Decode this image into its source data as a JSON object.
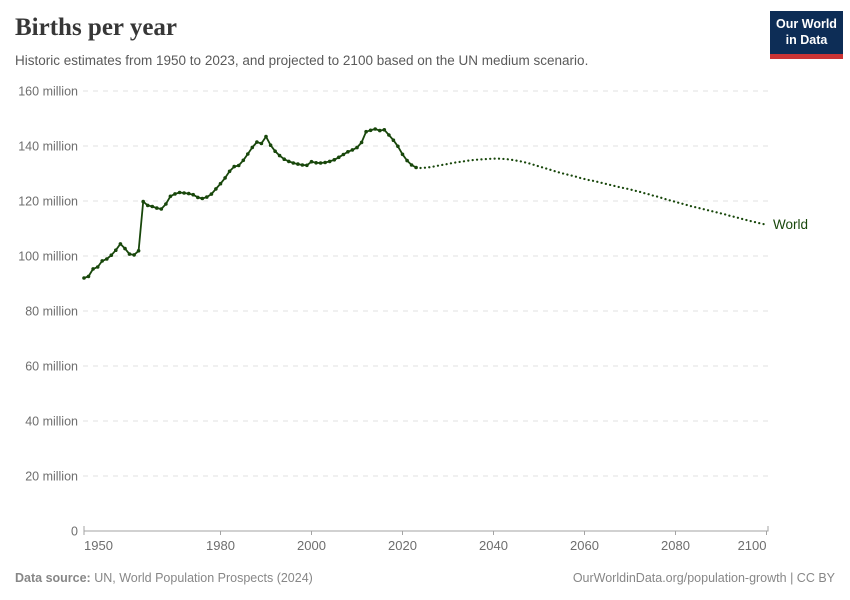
{
  "header": {
    "title": "Births per year",
    "subtitle": "Historic estimates from 1950 to 2023, and projected to 2100 based on the UN medium scenario.",
    "logo": {
      "line1": "Our World",
      "line2": "in Data",
      "bg": "#0d2d56",
      "accent": "#cb3434"
    }
  },
  "chart_data": {
    "type": "line",
    "title": "Births per year",
    "series_label": "World",
    "color": "#18470b",
    "grid_color": "#e2e2e2",
    "axis_color": "#a3a3a3",
    "tick_color": "#6e6e6e",
    "ylim": [
      0,
      160
    ],
    "xlim": [
      1950,
      2100
    ],
    "grid": "dashed-horizontal",
    "legend_position": "end-of-line",
    "yticks": [
      {
        "value": 160,
        "label": "160 million"
      },
      {
        "value": 140,
        "label": "140 million"
      },
      {
        "value": 120,
        "label": "120 million"
      },
      {
        "value": 100,
        "label": "100 million"
      },
      {
        "value": 80,
        "label": "80 million"
      },
      {
        "value": 60,
        "label": "60 million"
      },
      {
        "value": 40,
        "label": "40 million"
      },
      {
        "value": 20,
        "label": "20 million"
      },
      {
        "value": 0,
        "label": "0"
      }
    ],
    "xticks": [
      1950,
      1980,
      2000,
      2020,
      2040,
      2060,
      2080,
      2100
    ],
    "unit": "million births",
    "historic": {
      "style": "solid-with-markers",
      "start_year": 1950,
      "end_year": 2023,
      "values": [
        92.0,
        92.6,
        95.3,
        96.0,
        98.2,
        98.9,
        100.3,
        102.1,
        104.4,
        102.7,
        100.7,
        100.4,
        101.9,
        119.8,
        118.4,
        118.0,
        117.4,
        117.1,
        118.9,
        121.7,
        122.6,
        123.1,
        122.9,
        122.7,
        122.3,
        121.3,
        120.9,
        121.4,
        122.5,
        124.4,
        126.3,
        128.4,
        130.8,
        132.5,
        132.9,
        134.8,
        137.1,
        139.5,
        141.4,
        140.9,
        143.4,
        140.3,
        138.1,
        136.5,
        135.2,
        134.4,
        133.8,
        133.4,
        133.1,
        133.0,
        134.3,
        133.9,
        133.8,
        134.0,
        134.4,
        135.0,
        135.9,
        136.9,
        137.9,
        138.6,
        139.4,
        141.3,
        145.2,
        145.7,
        146.2,
        145.6,
        145.9,
        144.0,
        142.1,
        139.9,
        137.0,
        134.7,
        133.1,
        132.2
      ]
    },
    "projection": {
      "style": "dotted",
      "scenario": "UN medium scenario",
      "start_year": 2023,
      "end_year": 2100,
      "values": [
        132.2,
        132.0,
        132.1,
        132.3,
        132.6,
        132.9,
        133.2,
        133.5,
        133.8,
        134.1,
        134.3,
        134.6,
        134.8,
        135.0,
        135.1,
        135.2,
        135.3,
        135.4,
        135.4,
        135.3,
        135.2,
        135.0,
        134.7,
        134.4,
        134.0,
        133.6,
        133.1,
        132.6,
        132.1,
        131.6,
        131.1,
        130.6,
        130.1,
        129.7,
        129.3,
        128.9,
        128.4,
        128.0,
        127.6,
        127.3,
        126.9,
        126.5,
        126.1,
        125.7,
        125.3,
        124.9,
        124.6,
        124.2,
        123.8,
        123.4,
        122.9,
        122.5,
        122.0,
        121.6,
        121.1,
        120.6,
        120.1,
        119.7,
        119.2,
        118.8,
        118.3,
        117.9,
        117.5,
        117.1,
        116.7,
        116.3,
        115.9,
        115.5,
        115.1,
        114.6,
        114.2,
        113.8,
        113.3,
        112.9,
        112.5,
        112.1,
        111.7,
        111.4
      ]
    }
  },
  "footer": {
    "source_label": "Data source:",
    "source": " UN, World Population Prospects (2024)",
    "url": "OurWorldinData.org/population-growth",
    "separator": " | ",
    "license": "CC BY"
  }
}
